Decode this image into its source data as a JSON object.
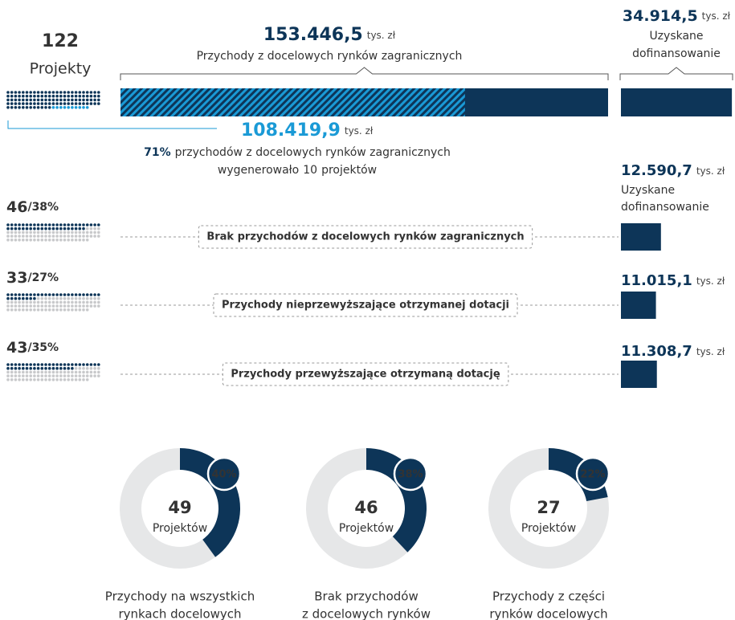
{
  "projects": {
    "count": 122,
    "label": "Projekty"
  },
  "unit": "tys. zł",
  "revenue": {
    "total": {
      "value": 153446.5,
      "label": "153.446,5"
    },
    "caption": "Przychody z docelowych rynków zagranicznych",
    "top": {
      "value": 108419.9,
      "label": "108.419,9"
    },
    "top_share": {
      "value": 71,
      "label": "71%"
    },
    "top_share_text": "przychodów z docelowych rynków zagranicznych",
    "top_projects_prefix": "wygenerowało",
    "top_projects": 10,
    "top_projects_suffix": "projektów"
  },
  "funding": {
    "value": 34914.5,
    "label": "34.914,5"
  },
  "funding_caption": [
    "Uzyskane",
    "dofinansowanie"
  ],
  "groups": [
    {
      "count": 46,
      "share": {
        "value": 38,
        "label": "/38%"
      },
      "label": "Brak przychodów z docelowych rynków zagranicznych",
      "funding": {
        "value": 12590.7,
        "label": "12.590,7"
      },
      "funding_caption": [
        "Uzyskane",
        "dofinansowanie"
      ]
    },
    {
      "count": 33,
      "share": {
        "value": 27,
        "label": "/27%"
      },
      "label": "Przychody nieprzewyższające otrzymanej dotacji",
      "funding": {
        "value": 11015.1,
        "label": "11.015,1"
      }
    },
    {
      "count": 43,
      "share": {
        "value": 35,
        "label": "/35%"
      },
      "label": "Przychody przewyższające otrzymaną dotację",
      "funding": {
        "value": 11308.7,
        "label": "11.308,7"
      }
    }
  ],
  "donuts": [
    {
      "share": {
        "value": 40,
        "label": "40%"
      },
      "count": 49,
      "unit": "Projektów",
      "caption": [
        "Przychody na wszystkich",
        "rynkach docelowych"
      ]
    },
    {
      "share": {
        "value": 38,
        "label": "38%"
      },
      "count": 46,
      "unit": "Projektów",
      "caption": [
        "Brak przychodów",
        "z docelowych rynków"
      ]
    },
    {
      "share": {
        "value": 22,
        "label": "22%"
      },
      "count": 27,
      "unit": "Projektów",
      "caption": [
        "Przychody z części",
        "rynków docelowych"
      ]
    }
  ]
}
